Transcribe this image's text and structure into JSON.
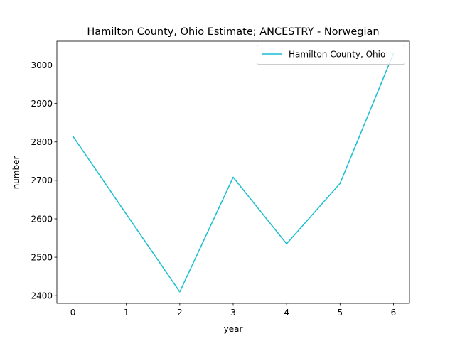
{
  "chart_data": {
    "type": "line",
    "title": "Hamilton County, Ohio Estimate; ANCESTRY - Norwegian",
    "xlabel": "year",
    "ylabel": "number",
    "x": [
      0,
      1,
      2,
      3,
      4,
      5,
      6
    ],
    "xticks": [
      "0",
      "1",
      "2",
      "3",
      "4",
      "5",
      "6"
    ],
    "yticks": [
      "2400",
      "2500",
      "2600",
      "2700",
      "2800",
      "2900",
      "3000"
    ],
    "xlim": [
      -0.3,
      6.3
    ],
    "ylim": [
      2380,
      3062
    ],
    "series": [
      {
        "name": "Hamilton County, Ohio",
        "color": "#17becf",
        "values": [
          2815,
          2612,
          2410,
          2708,
          2535,
          2692,
          3030
        ]
      }
    ],
    "legend_position": "top-right",
    "grid": false
  }
}
